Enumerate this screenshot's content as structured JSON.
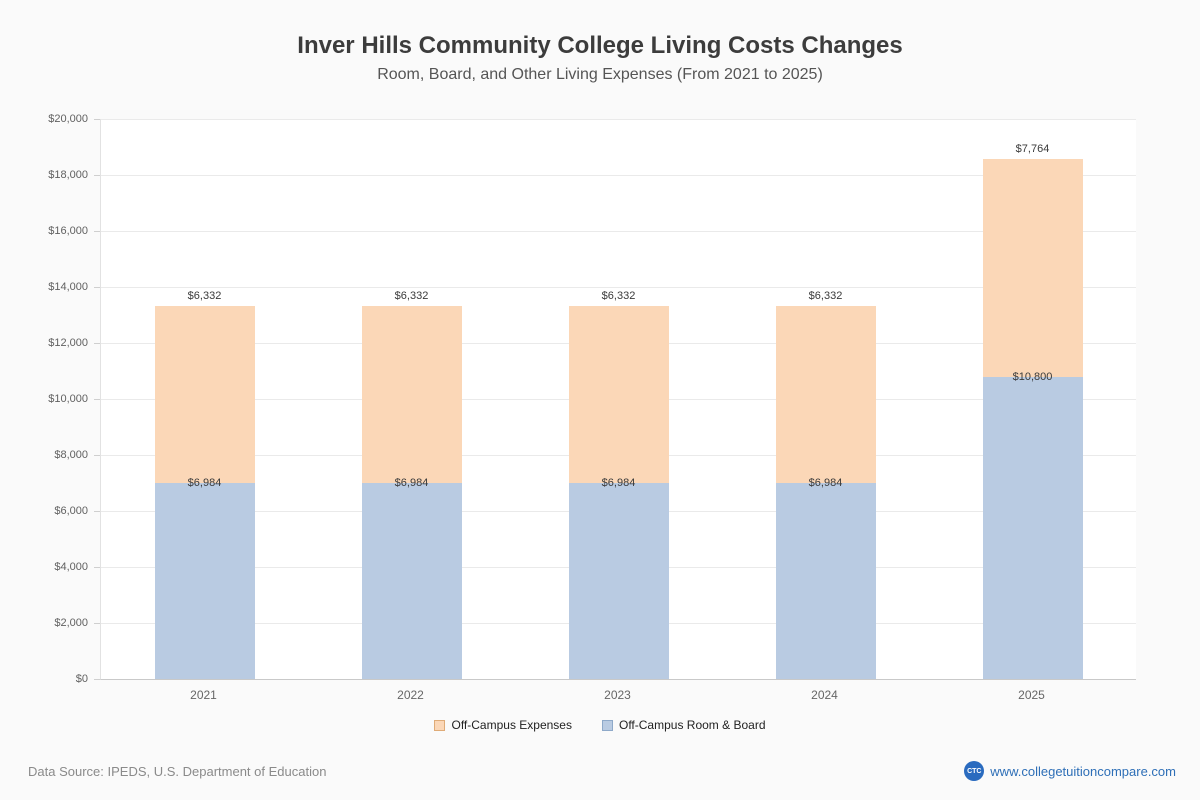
{
  "title": "Inver Hills Community College Living Costs Changes",
  "subtitle": "Room, Board, and Other Living Expenses (From 2021 to 2025)",
  "footer": {
    "source": "Data Source: IPEDS, U.S. Department of Education",
    "site": "www.collegetuitioncompare.com",
    "logo": "CTC"
  },
  "chart_data": {
    "type": "bar",
    "stacked": true,
    "title": "Inver Hills Community College Living Costs Changes",
    "subtitle": "Room, Board, and Other Living Expenses (From 2021 to 2025)",
    "categories": [
      "2021",
      "2022",
      "2023",
      "2024",
      "2025"
    ],
    "series": [
      {
        "name": "Off-Campus Room & Board",
        "key": "off-campus-room-and-board",
        "color": "#b9cbe2",
        "values": [
          6984,
          6984,
          6984,
          6984,
          10800
        ],
        "labels": [
          "$6,984",
          "$6,984",
          "$6,984",
          "$6,984",
          "$10,800"
        ]
      },
      {
        "name": "Off-Campus Expenses",
        "key": "off-campus-expenses",
        "color": "#fbd7b7",
        "values": [
          6332,
          6332,
          6332,
          6332,
          7764
        ],
        "labels": [
          "$6,332",
          "$6,332",
          "$6,332",
          "$6,332",
          "$7,764"
        ]
      }
    ],
    "xlabel": "",
    "ylabel": "",
    "ylim": [
      0,
      20000
    ],
    "ytick_step": 2000,
    "ytick_labels": [
      "$0",
      "$2,000",
      "$4,000",
      "$6,000",
      "$8,000",
      "$10,000",
      "$12,000",
      "$14,000",
      "$16,000",
      "$18,000",
      "$20,000"
    ],
    "grid": true,
    "legend_position": "bottom",
    "legend": [
      {
        "label": "Off-Campus Expenses",
        "color": "#fbd7b7",
        "border": "#dfab77"
      },
      {
        "label": "Off-Campus Room & Board",
        "color": "#b9cbe2",
        "border": "#8ea9c9"
      }
    ]
  }
}
